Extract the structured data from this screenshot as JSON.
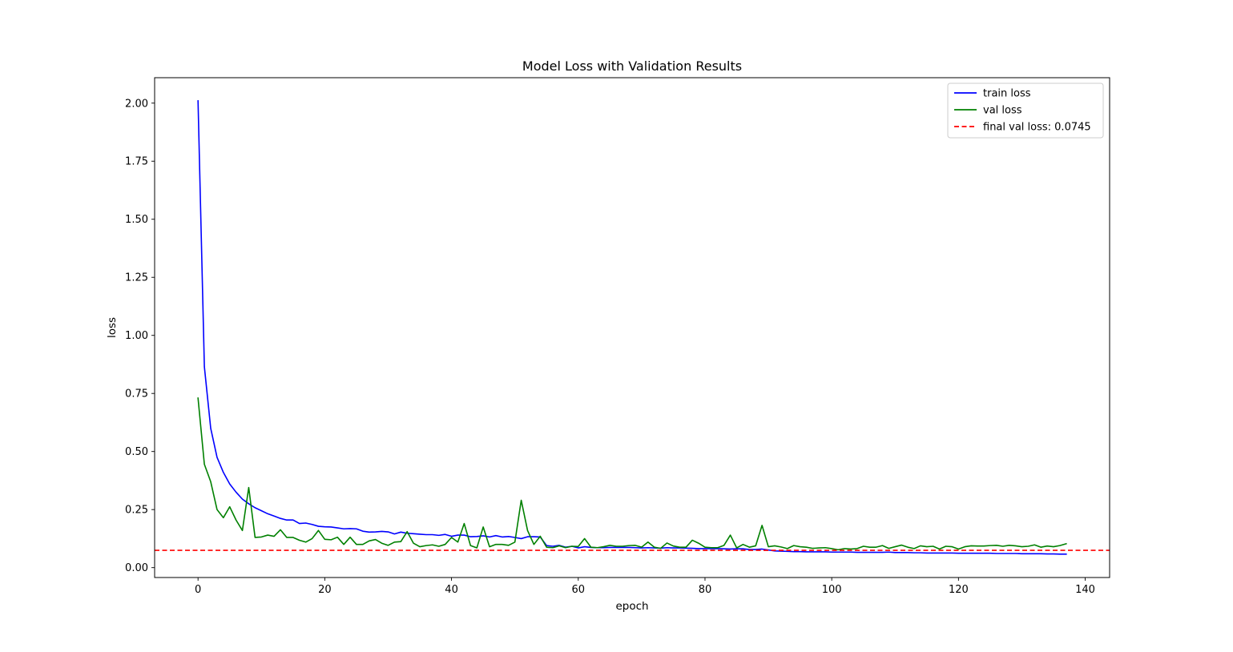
{
  "chart_data": {
    "type": "line",
    "title": "Model Loss with Validation Results",
    "xlabel": "epoch",
    "ylabel": "loss",
    "xlim": [
      -6.85,
      143.85
    ],
    "ylim": [
      -0.0425,
      2.1095
    ],
    "x_ticks": [
      0,
      20,
      40,
      60,
      80,
      100,
      120,
      140
    ],
    "x_tick_labels": [
      "0",
      "20",
      "40",
      "60",
      "80",
      "100",
      "120",
      "140"
    ],
    "y_ticks": [
      0.0,
      0.25,
      0.5,
      0.75,
      1.0,
      1.25,
      1.5,
      1.75,
      2.0
    ],
    "y_tick_labels": [
      "0.00",
      "0.25",
      "0.50",
      "0.75",
      "1.00",
      "1.25",
      "1.50",
      "1.75",
      "2.00"
    ],
    "grid": false,
    "legend_position": "top-right",
    "series": [
      {
        "name": "train loss",
        "color": "#0000ff",
        "style": "solid",
        "values": [
          2.01,
          0.865,
          0.6,
          0.475,
          0.41,
          0.36,
          0.325,
          0.295,
          0.275,
          0.258,
          0.245,
          0.232,
          0.222,
          0.212,
          0.205,
          0.205,
          0.19,
          0.192,
          0.186,
          0.178,
          0.176,
          0.175,
          0.171,
          0.167,
          0.168,
          0.167,
          0.157,
          0.153,
          0.154,
          0.156,
          0.154,
          0.145,
          0.153,
          0.148,
          0.146,
          0.144,
          0.142,
          0.142,
          0.139,
          0.143,
          0.135,
          0.14,
          0.14,
          0.133,
          0.134,
          0.137,
          0.132,
          0.138,
          0.132,
          0.134,
          0.13,
          0.125,
          0.133,
          0.133,
          0.132,
          0.095,
          0.092,
          0.096,
          0.088,
          0.092,
          0.085,
          0.09,
          0.087,
          0.086,
          0.086,
          0.087,
          0.087,
          0.087,
          0.087,
          0.086,
          0.085,
          0.086,
          0.085,
          0.084,
          0.086,
          0.085,
          0.085,
          0.084,
          0.083,
          0.082,
          0.082,
          0.082,
          0.082,
          0.081,
          0.08,
          0.081,
          0.081,
          0.078,
          0.078,
          0.08,
          0.076,
          0.072,
          0.071,
          0.07,
          0.069,
          0.069,
          0.068,
          0.068,
          0.068,
          0.068,
          0.067,
          0.067,
          0.067,
          0.067,
          0.066,
          0.066,
          0.066,
          0.066,
          0.066,
          0.067,
          0.065,
          0.065,
          0.065,
          0.064,
          0.064,
          0.063,
          0.063,
          0.063,
          0.063,
          0.063,
          0.062,
          0.062,
          0.062,
          0.062,
          0.062,
          0.062,
          0.061,
          0.061,
          0.061,
          0.061,
          0.06,
          0.06,
          0.06,
          0.06,
          0.059,
          0.059,
          0.058,
          0.058
        ]
      },
      {
        "name": "val loss",
        "color": "#008000",
        "style": "solid",
        "values": [
          0.73,
          0.445,
          0.37,
          0.25,
          0.215,
          0.262,
          0.205,
          0.16,
          0.345,
          0.13,
          0.132,
          0.14,
          0.135,
          0.163,
          0.13,
          0.13,
          0.118,
          0.11,
          0.125,
          0.16,
          0.122,
          0.12,
          0.131,
          0.1,
          0.131,
          0.1,
          0.1,
          0.115,
          0.121,
          0.105,
          0.096,
          0.11,
          0.112,
          0.155,
          0.105,
          0.09,
          0.095,
          0.098,
          0.092,
          0.1,
          0.13,
          0.11,
          0.19,
          0.095,
          0.085,
          0.175,
          0.09,
          0.1,
          0.1,
          0.096,
          0.11,
          0.29,
          0.16,
          0.1,
          0.135,
          0.088,
          0.086,
          0.094,
          0.086,
          0.092,
          0.091,
          0.125,
          0.088,
          0.086,
          0.09,
          0.096,
          0.092,
          0.092,
          0.095,
          0.096,
          0.088,
          0.11,
          0.088,
          0.083,
          0.106,
          0.093,
          0.088,
          0.088,
          0.118,
          0.105,
          0.088,
          0.086,
          0.086,
          0.096,
          0.14,
          0.085,
          0.1,
          0.088,
          0.094,
          0.182,
          0.09,
          0.094,
          0.089,
          0.082,
          0.095,
          0.09,
          0.088,
          0.083,
          0.085,
          0.086,
          0.082,
          0.077,
          0.082,
          0.08,
          0.082,
          0.092,
          0.088,
          0.088,
          0.095,
          0.083,
          0.09,
          0.097,
          0.088,
          0.082,
          0.094,
          0.09,
          0.092,
          0.08,
          0.092,
          0.09,
          0.08,
          0.09,
          0.094,
          0.093,
          0.093,
          0.095,
          0.096,
          0.092,
          0.096,
          0.094,
          0.09,
          0.092,
          0.098,
          0.088,
          0.093,
          0.09,
          0.095,
          0.103
        ]
      },
      {
        "name": "final val loss: 0.0745",
        "color": "#ff0000",
        "style": "dashed",
        "hline": 0.0745
      }
    ]
  }
}
